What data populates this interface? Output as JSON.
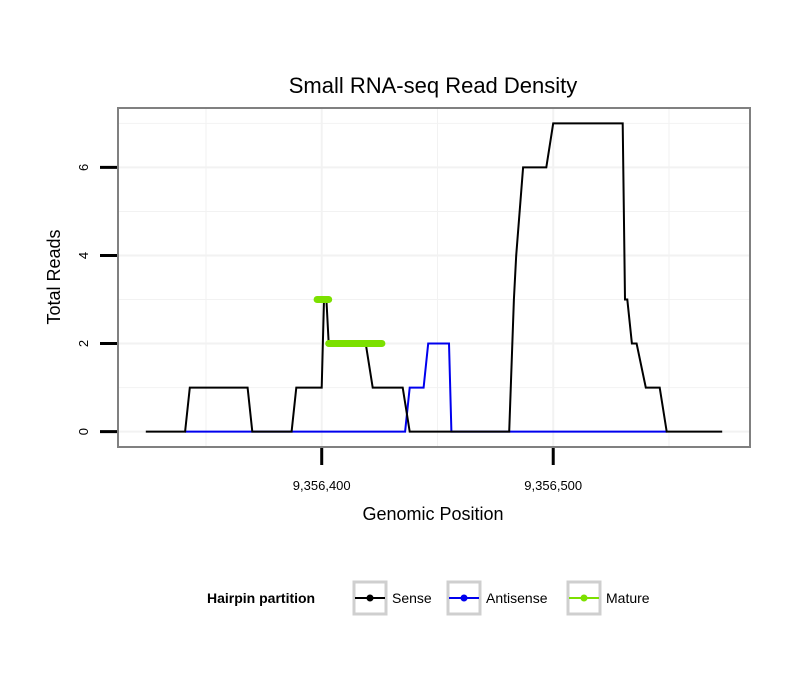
{
  "chart_data": {
    "type": "line",
    "title": "Small RNA-seq Read Density",
    "xlabel": "Genomic Position",
    "ylabel": "Total Reads",
    "xlim": [
      9356312,
      9356585
    ],
    "ylim": [
      -0.35,
      7.35
    ],
    "x_ticks": [
      9356400,
      9356500
    ],
    "x_tick_labels": [
      "9,356,400",
      "9,356,500"
    ],
    "y_ticks": [
      0,
      2,
      4,
      6
    ],
    "y_tick_labels": [
      "0",
      "2",
      "4",
      "6"
    ],
    "minor_x_gridlines": [
      9356350,
      9356450,
      9356550
    ],
    "minor_y_gridlines": [
      1,
      3,
      5,
      7
    ],
    "legend": {
      "title": "Hairpin partition",
      "position": "bottom",
      "entries": [
        "Sense",
        "Antisense",
        "Mature"
      ]
    },
    "colors": {
      "Sense": "#000000",
      "Antisense": "#0000ee",
      "Mature": "#7ce000",
      "panel_border": "#808080",
      "grid": "#f2f2f2"
    },
    "series": [
      {
        "name": "Sense",
        "color": "#000000",
        "x": [
          9356324,
          9356341,
          9356343,
          9356368,
          9356370,
          9356387,
          9356389,
          9356400,
          9356401,
          9356402,
          9356403,
          9356410,
          9356418,
          9356419,
          9356422,
          9356426,
          9356428,
          9356435,
          9356438,
          9356480,
          9356481,
          9356483,
          9356484,
          9356487,
          9356490,
          9356497,
          9356500,
          9356506,
          9356509,
          9356530,
          9356531,
          9356532,
          9356534,
          9356536,
          9356540,
          9356546,
          9356549,
          9356573
        ],
        "y": [
          0,
          0,
          1,
          1,
          0,
          0,
          1,
          1,
          3,
          3,
          2,
          2,
          2,
          2,
          1,
          1,
          1,
          1,
          0,
          0,
          0,
          3,
          4,
          6,
          6,
          6,
          7,
          7,
          7,
          7,
          3,
          3,
          2,
          2,
          1,
          1,
          0,
          0
        ]
      },
      {
        "name": "Antisense",
        "color": "#0000ee",
        "x": [
          9356341,
          9356436,
          9356438,
          9356444,
          9356446,
          9356455,
          9356456,
          9356485,
          9356549
        ],
        "y": [
          0,
          0,
          1,
          1,
          2,
          2,
          0,
          0,
          0
        ]
      },
      {
        "name": "Mature",
        "color": "#7ce000",
        "segments": [
          {
            "x": [
              9356398,
              9356403
            ],
            "y": [
              3,
              3
            ]
          },
          {
            "x": [
              9356403,
              9356426
            ],
            "y": [
              2,
              2
            ]
          }
        ]
      }
    ]
  }
}
